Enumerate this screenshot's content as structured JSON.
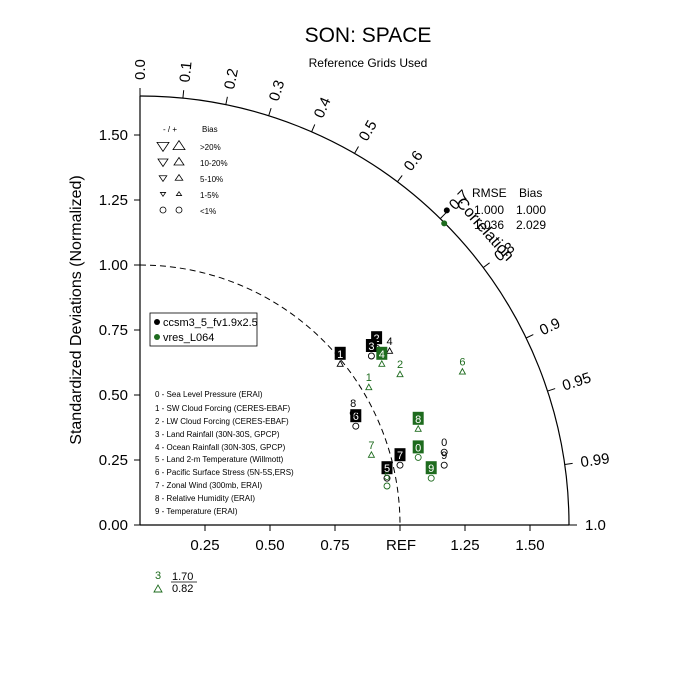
{
  "title": "SON: SPACE",
  "subtitle": "Reference Grids Used",
  "ylabel": "Standardized Deviations (Normalized)",
  "correlation_label": "Correlation",
  "ref_label": "REF",
  "corr_ticks": [
    "0.0",
    "0.1",
    "0.2",
    "0.3",
    "0.4",
    "0.5",
    "0.6",
    "0.7",
    "0.8",
    "0.9",
    "0.95",
    "0.99",
    "1.0"
  ],
  "y_ticks": [
    "0.00",
    "0.25",
    "0.50",
    "0.75",
    "1.00",
    "1.25",
    "1.50"
  ],
  "x_ticks": [
    "0.25",
    "0.50",
    "0.75",
    "1.25",
    "1.50"
  ],
  "bias_legend": {
    "header_sign": "- / +",
    "header_bias": "Bias",
    "rows": [
      ">20%",
      "10-20%",
      "5-10%",
      "1-5%",
      "<1%"
    ]
  },
  "rmse_table": {
    "h1": "RMSE",
    "h2": "Bias",
    "r1a": "1.000",
    "r1b": "1.000",
    "r2a": "1.036",
    "r2b": "2.029"
  },
  "cases": [
    {
      "name": "ccsm3_5_fv1.9x2.5",
      "color": "#000000"
    },
    {
      "name": "vres_L064",
      "color": "#1e6b1e"
    }
  ],
  "variables": [
    "0 - Sea Level Pressure (ERAI)",
    "1 - SW Cloud Forcing (CERES-EBAF)",
    "2 - LW Cloud Forcing (CERES-EBAF)",
    "3 - Land Rainfall (30N-30S, GPCP)",
    "4 - Ocean Rainfall (30N-30S, GPCP)",
    "5 - Land 2-m Temperature (Willmott)",
    "6 - Pacific Surface Stress (5N-5S,ERS)",
    "7 - Zonal Wind (300mb, ERAI)",
    "8 - Relative Humidity (ERAI)",
    "9 - Temperature (ERAI)"
  ],
  "outlier": {
    "label": "3",
    "v1": "1.70",
    "v2": "0.82"
  },
  "chart_data": {
    "type": "scatter",
    "title": "SON: SPACE",
    "ylabel": "Standardized Deviations (Normalized)",
    "ylim": [
      0,
      1.65
    ],
    "series": [
      {
        "name": "ccsm3_5_fv1.9x2.5",
        "color": "#000000",
        "points": [
          {
            "label": "0",
            "x": 1.17,
            "y": 0.28,
            "marker": "circle",
            "boxed": false
          },
          {
            "label": "1",
            "x": 0.77,
            "y": 0.62,
            "marker": "triangle",
            "boxed": true
          },
          {
            "label": "2",
            "x": 0.91,
            "y": 0.68,
            "marker": "circle",
            "boxed": true
          },
          {
            "label": "3",
            "x": 0.89,
            "y": 0.65,
            "marker": "circle",
            "boxed": true
          },
          {
            "label": "4",
            "x": 0.96,
            "y": 0.67,
            "marker": "triangle",
            "boxed": false
          },
          {
            "label": "5",
            "x": 0.95,
            "y": 0.18,
            "marker": "circle",
            "boxed": true
          },
          {
            "label": "6",
            "x": 0.83,
            "y": 0.38,
            "marker": "circle",
            "boxed": true
          },
          {
            "label": "7",
            "x": 1.0,
            "y": 0.23,
            "marker": "circle",
            "boxed": true
          },
          {
            "label": "8",
            "x": 0.82,
            "y": 0.43,
            "marker": "circle",
            "boxed": false
          },
          {
            "label": "9",
            "x": 1.17,
            "y": 0.23,
            "marker": "circle",
            "boxed": false
          }
        ]
      },
      {
        "name": "vres_L064",
        "color": "#1e6b1e",
        "points": [
          {
            "label": "0",
            "x": 1.07,
            "y": 0.26,
            "marker": "circle",
            "boxed": true
          },
          {
            "label": "1",
            "x": 0.88,
            "y": 0.53,
            "marker": "triangle",
            "boxed": false
          },
          {
            "label": "2",
            "x": 1.0,
            "y": 0.58,
            "marker": "triangle",
            "boxed": false
          },
          {
            "label": "4",
            "x": 0.93,
            "y": 0.62,
            "marker": "triangle",
            "boxed": true
          },
          {
            "label": "5",
            "x": 0.95,
            "y": 0.15,
            "marker": "circle",
            "boxed": false
          },
          {
            "label": "6",
            "x": 1.24,
            "y": 0.59,
            "marker": "triangle",
            "boxed": false
          },
          {
            "label": "7",
            "x": 0.89,
            "y": 0.27,
            "marker": "triangle",
            "boxed": false
          },
          {
            "label": "8",
            "x": 1.07,
            "y": 0.37,
            "marker": "triangle",
            "boxed": true
          },
          {
            "label": "9",
            "x": 1.12,
            "y": 0.18,
            "marker": "circle",
            "boxed": true
          },
          {
            "label": "",
            "x": 1.17,
            "y": 1.16,
            "marker": "dot",
            "boxed": false
          }
        ]
      },
      {
        "name": "",
        "color": "#000000",
        "points": [
          {
            "label": "",
            "x": 1.18,
            "y": 1.21,
            "marker": "dot",
            "boxed": false
          }
        ]
      }
    ],
    "grid": false,
    "legend_position": "left"
  }
}
